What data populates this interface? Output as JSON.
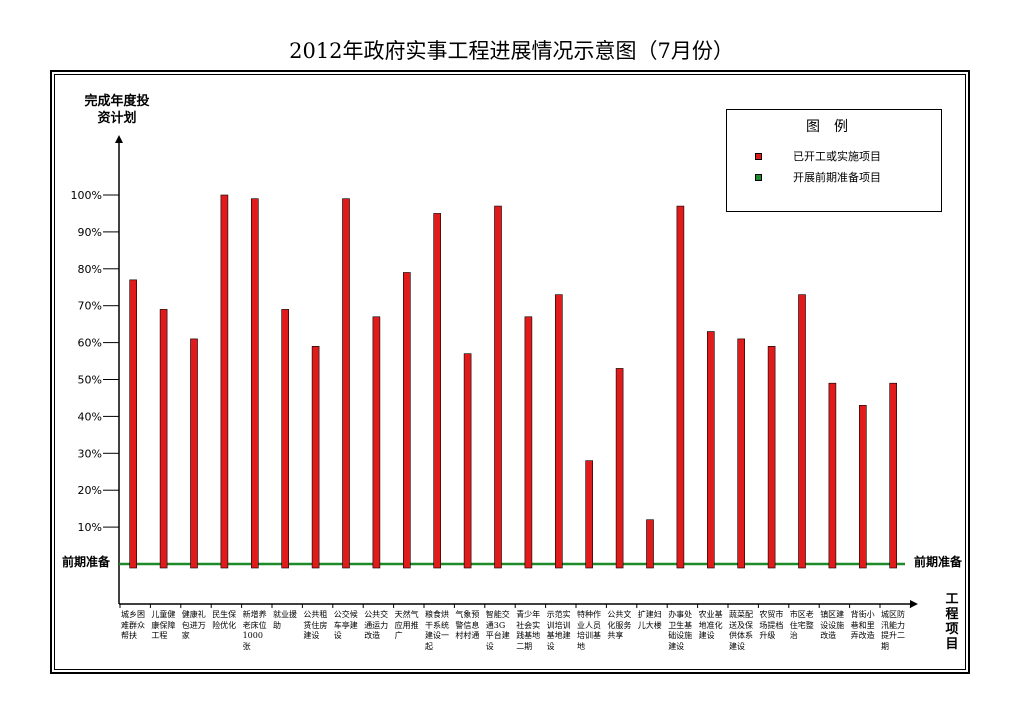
{
  "title": "2012年政府实事工程进展情况示意图（7月份）",
  "legend": {
    "title": "图例",
    "items": [
      {
        "label": "已开工或实施项目",
        "color": "#e01b1b"
      },
      {
        "label": "开展前期准备项目",
        "color": "#1e8a2a"
      }
    ]
  },
  "chart_data": {
    "type": "bar",
    "ylabel": "完成年度投资计划",
    "xlabel": "工程项目",
    "reference_line": {
      "label": "前期准备",
      "color": "#1e8a2a"
    },
    "ylim": [
      0,
      100
    ],
    "yticks": [
      "10%",
      "20%",
      "30%",
      "40%",
      "50%",
      "60%",
      "70%",
      "80%",
      "90%",
      "100%"
    ],
    "bar_color": "#e01b1b",
    "categories": [
      "城乡困难群众帮扶",
      "儿童健康保障工程",
      "健康礼包进万家",
      "民生保险优化",
      "新增养老床位1000张",
      "就业援助",
      "公共租赁住房建设",
      "公交候车亭建设",
      "公共交通运力改造",
      "天然气应用推广",
      "粮食烘干系统建设一起",
      "气象预警信息村村通",
      "智能交通3G平台建设",
      "青少年社会实践基地二期",
      "示范实训培训基地建设",
      "特种作业人员培训基地",
      "公共文化服务共享",
      "扩建妇儿大楼",
      "办事处卫生基础设施建设",
      "农业基地准化建设",
      "蔬菜配送及保供体系建设",
      "农贸市场提档升级",
      "市区老住宅整治",
      "镇区建设设施改造",
      "背街小巷和里弄改造",
      "城区防汛能力提升二期"
    ],
    "values": [
      77,
      69,
      61,
      100,
      99,
      69,
      59,
      99,
      67,
      79,
      95,
      57,
      97,
      67,
      73,
      28,
      53,
      12,
      97,
      63,
      61,
      59,
      73,
      49,
      43,
      49
    ]
  }
}
